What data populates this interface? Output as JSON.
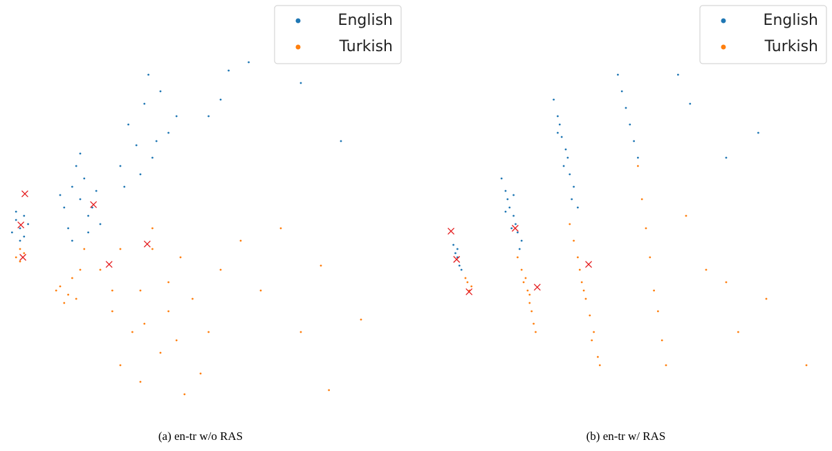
{
  "chart_data": [
    {
      "type": "scatter",
      "caption": "(a)  en-tr w/o RAS",
      "xlim": [
        0,
        100
      ],
      "ylim": [
        0,
        100
      ],
      "legend": "upper right",
      "series": [
        {
          "name": "English",
          "color": "#1f77b4",
          "x": [
            3,
            4,
            5,
            6,
            7,
            4,
            6,
            5,
            16,
            18,
            20,
            22,
            24,
            17,
            19,
            21,
            23,
            25,
            18,
            20,
            22,
            15,
            30,
            32,
            34,
            36,
            38,
            40,
            42,
            35,
            37,
            31,
            44,
            39,
            52,
            55,
            57,
            62,
            75,
            85
          ],
          "values": [
            44,
            47,
            45,
            43,
            46,
            49,
            48,
            42,
            50,
            55,
            52,
            48,
            54,
            45,
            60,
            57,
            50,
            46,
            42,
            63,
            44,
            53,
            60,
            70,
            65,
            75,
            62,
            78,
            68,
            58,
            82,
            55,
            72,
            66,
            72,
            76,
            83,
            85,
            80,
            66
          ]
        },
        {
          "name": "Turkish",
          "color": "#ff7f0e",
          "x": [
            4,
            5,
            6,
            5,
            14,
            15,
            17,
            19,
            18,
            16,
            20,
            21,
            25,
            28,
            30,
            33,
            35,
            38,
            40,
            42,
            45,
            48,
            50,
            30,
            36,
            44,
            55,
            60,
            28,
            35,
            42,
            38,
            46,
            52,
            65,
            70,
            75,
            80,
            90,
            82
          ],
          "values": [
            38,
            37,
            39,
            40,
            30,
            31,
            29,
            28,
            33,
            27,
            35,
            40,
            35,
            25,
            40,
            20,
            30,
            45,
            15,
            32,
            38,
            28,
            10,
            12,
            22,
            18,
            35,
            42,
            30,
            8,
            25,
            40,
            5,
            20,
            30,
            45,
            20,
            36,
            23,
            6
          ]
        }
      ],
      "markers": {
        "color": "#e41a1c",
        "x": [
          6.2,
          5.2,
          5.7,
          23.3,
          27.2,
          36.7
        ],
        "values": [
          53.3,
          45.8,
          38,
          50.7,
          36.3,
          41.2
        ]
      }
    },
    {
      "type": "scatter",
      "caption": "(b)  en-tr w/ RAS",
      "xlim": [
        0,
        100
      ],
      "ylim": [
        0,
        100
      ],
      "legend": "upper right",
      "series": [
        {
          "name": "English",
          "color": "#1f77b4",
          "x": [
            7,
            7.5,
            8,
            8.5,
            9,
            8,
            19,
            20,
            20.5,
            21,
            22,
            22.5,
            23,
            24,
            21.5,
            20,
            23.5,
            22,
            32,
            33,
            33.5,
            34,
            35,
            35.5,
            36,
            37,
            34.5,
            36.5,
            33,
            38,
            48,
            49,
            50,
            51,
            52,
            53,
            63,
            66,
            75,
            83
          ],
          "values": [
            41,
            39,
            38,
            36,
            35,
            40,
            57,
            54,
            52,
            50,
            48,
            46,
            44,
            42,
            45,
            49,
            40,
            53,
            76,
            72,
            70,
            67,
            64,
            62,
            58,
            55,
            60,
            52,
            68,
            50,
            82,
            78,
            74,
            70,
            66,
            62,
            82,
            75,
            62,
            68
          ]
        },
        {
          "name": "Turkish",
          "color": "#ff7f0e",
          "x": [
            10,
            10.5,
            11,
            11.5,
            23,
            24,
            25,
            25.5,
            26,
            26.5,
            27,
            24.5,
            27.5,
            26,
            36,
            37,
            38,
            38.5,
            39,
            40,
            41,
            42,
            43,
            39.5,
            41.5,
            43.5,
            53,
            54,
            55,
            56,
            57,
            58,
            59,
            60,
            65,
            70,
            75,
            78,
            85,
            95
          ],
          "values": [
            33,
            32,
            30,
            31,
            38,
            35,
            33,
            30,
            27,
            25,
            22,
            32,
            20,
            29,
            46,
            42,
            38,
            35,
            32,
            28,
            24,
            20,
            14,
            30,
            18,
            12,
            60,
            52,
            45,
            38,
            30,
            25,
            18,
            12,
            48,
            35,
            32,
            20,
            28,
            12
          ]
        }
      ],
      "markers": {
        "color": "#e41a1c",
        "x": [
          6.4,
          7.8,
          10.9,
          22.4,
          27.9,
          40.7
        ],
        "values": [
          44.3,
          37.5,
          29.7,
          45,
          30.8,
          36.3
        ]
      }
    }
  ]
}
